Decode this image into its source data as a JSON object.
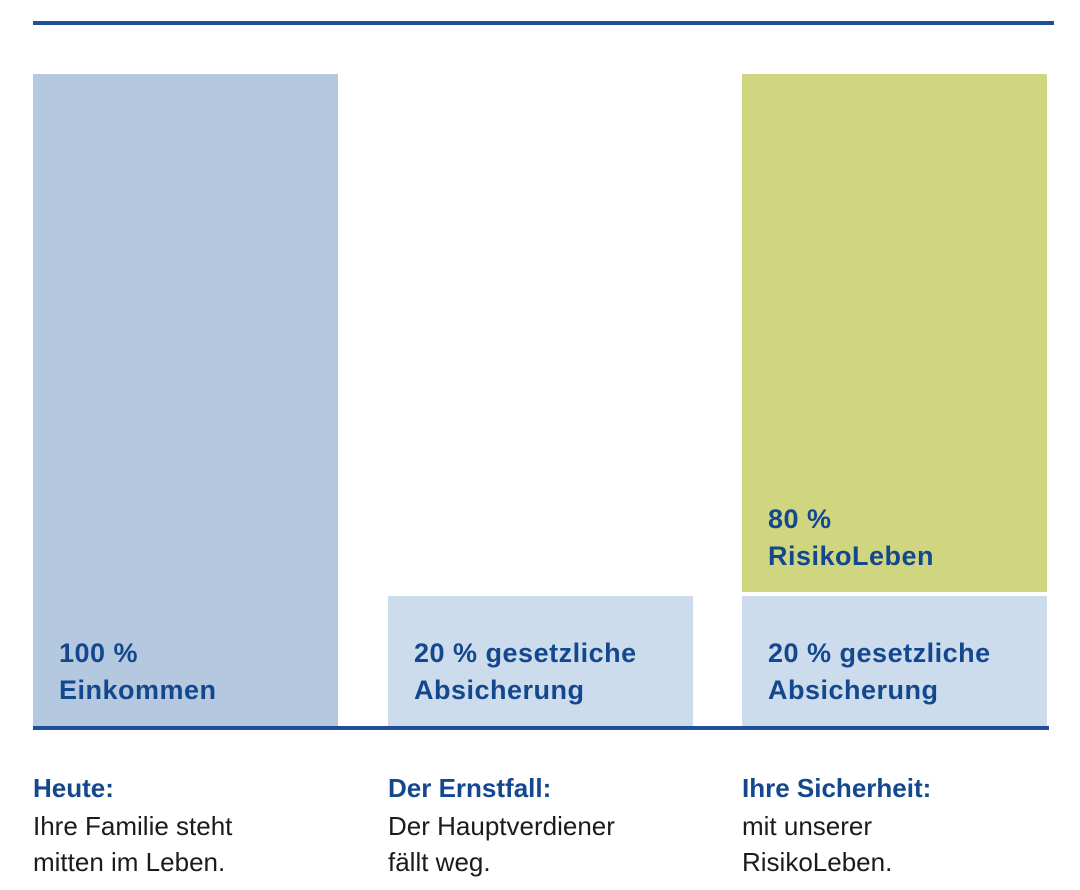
{
  "chart_data": {
    "type": "bar",
    "stacked": true,
    "ylim": [
      0,
      100
    ],
    "categories": [
      {
        "key": "heute",
        "title": "Heute:",
        "description": "Ihre Familie steht\nmitten im Leben.",
        "segments": [
          {
            "label": "100 %\nEinkommen",
            "value": 100,
            "color": "#b4c9e0"
          }
        ]
      },
      {
        "key": "ernstfall",
        "title": "Der Ernstfall:",
        "description": "Der Hauptverdiener\nfällt weg.",
        "segments": [
          {
            "label": "20 % gesetzliche\nAbsicherung",
            "value": 20,
            "color": "#cddcec"
          }
        ]
      },
      {
        "key": "sicherheit",
        "title": "Ihre Sicherheit:",
        "description": "mit unserer\nRisikoLeben.",
        "segments": [
          {
            "label": "20 % gesetzliche\nAbsicherung",
            "value": 20,
            "color": "#cddcec"
          },
          {
            "label": "80 %\nRisikoLeben",
            "value": 80,
            "color": "#d0d67f"
          }
        ]
      }
    ]
  }
}
